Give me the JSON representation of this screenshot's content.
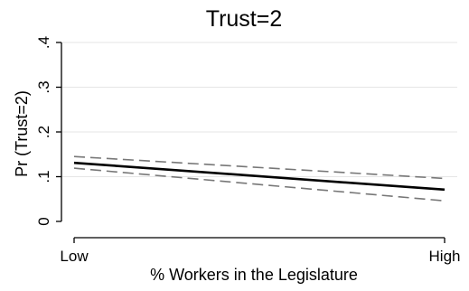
{
  "chart_data": {
    "type": "line",
    "title": "Trust=2",
    "xlabel": "% Workers in the Legislature",
    "ylabel": "Pr (Trust=2)",
    "x_categories": [
      "Low",
      "High"
    ],
    "y_ticks": [
      0,
      0.1,
      0.2,
      0.3,
      0.4
    ],
    "y_tick_labels": [
      "0",
      ".1",
      ".2",
      ".3",
      ".4"
    ],
    "ylim": [
      0,
      0.4
    ],
    "grid": true,
    "series": [
      {
        "role": "estimate",
        "style": "solid",
        "color": "#000000",
        "x": [
          0,
          1
        ],
        "y": [
          0.131,
          0.071
        ]
      },
      {
        "role": "upper-ci",
        "style": "dashed",
        "color": "#777777",
        "x": [
          0,
          1
        ],
        "y": [
          0.145,
          0.096
        ]
      },
      {
        "role": "lower-ci",
        "style": "dashed",
        "color": "#777777",
        "x": [
          0,
          1
        ],
        "y": [
          0.119,
          0.046
        ]
      }
    ]
  }
}
